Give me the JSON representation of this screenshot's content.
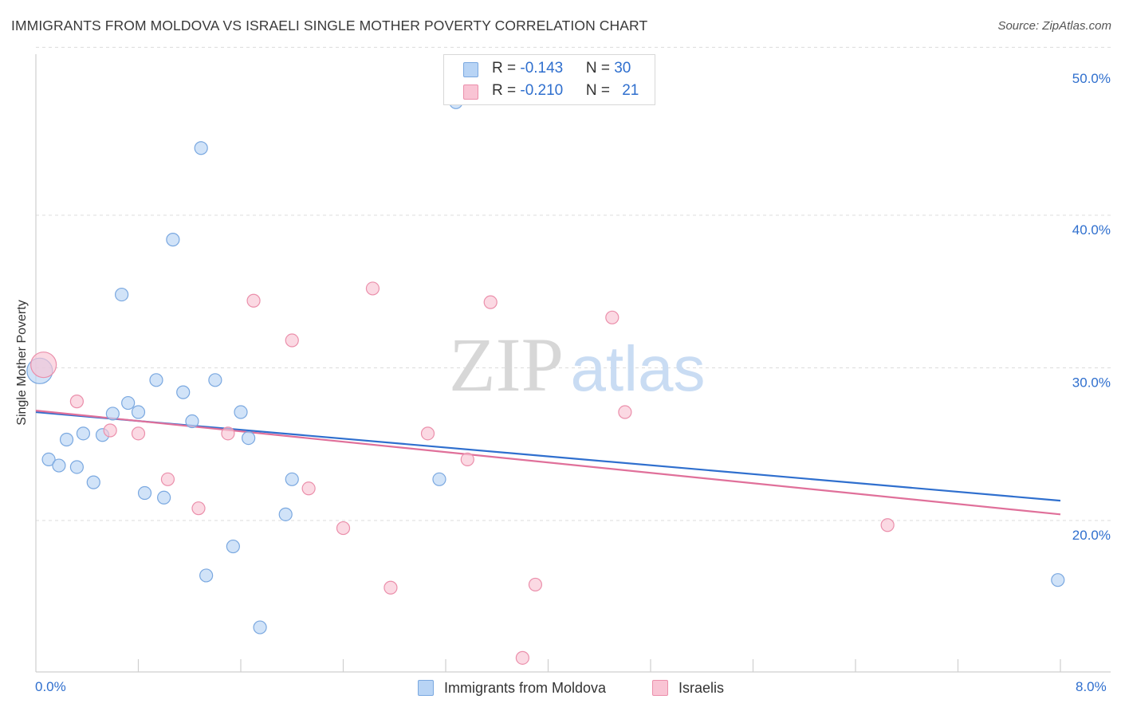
{
  "title": "IMMIGRANTS FROM MOLDOVA VS ISRAELI SINGLE MOTHER POVERTY CORRELATION CHART",
  "source": "Source: ZipAtlas.com",
  "watermark": {
    "zip": "ZIP",
    "atlas": "atlas"
  },
  "colors": {
    "blue_fill": "#b8d4f5",
    "blue_stroke": "#7aa8e0",
    "blue_line": "#2f6fce",
    "pink_fill": "#f9c4d4",
    "pink_stroke": "#eb8fab",
    "pink_line": "#e0709a",
    "axis_text": "#2f6fce",
    "grid": "#dcdcdc"
  },
  "legend": {
    "rows": [
      {
        "r_label": "R = ",
        "r_value": "-0.143",
        "n_label": "N = ",
        "n_value": "30",
        "series": "blue"
      },
      {
        "r_label": "R = ",
        "r_value": "-0.210",
        "n_label": "N = ",
        "n_value": "21",
        "series": "pink"
      }
    ]
  },
  "bottom_legend": [
    {
      "label": "Immigrants from Moldova",
      "series": "blue"
    },
    {
      "label": "Israelis",
      "series": "pink"
    }
  ],
  "chart_data": {
    "type": "scatter",
    "title": "IMMIGRANTS FROM MOLDOVA VS ISRAELI SINGLE MOTHER POVERTY CORRELATION CHART",
    "xlabel": "",
    "ylabel": "Single Mother Poverty",
    "xlim": [
      0,
      8
    ],
    "ylim": [
      10,
      52
    ],
    "x_tick_labels": [
      {
        "value": 0,
        "label": "0.0%"
      },
      {
        "value": 8,
        "label": "8.0%"
      }
    ],
    "y_tick_labels": [
      {
        "value": 20,
        "label": "20.0%"
      },
      {
        "value": 30,
        "label": "30.0%"
      },
      {
        "value": 40,
        "label": "40.0%"
      },
      {
        "value": 50,
        "label": "50.0%"
      }
    ],
    "grid_y": [
      20,
      30,
      40,
      51
    ],
    "series": [
      {
        "name": "Immigrants from Moldova",
        "color": "blue",
        "trend": {
          "x": [
            0,
            8
          ],
          "y": [
            27.1,
            21.3
          ]
        },
        "points": [
          {
            "x": 0.03,
            "y": 29.8,
            "size": "large"
          },
          {
            "x": 0.1,
            "y": 24.0
          },
          {
            "x": 0.18,
            "y": 23.6
          },
          {
            "x": 0.24,
            "y": 25.3
          },
          {
            "x": 0.32,
            "y": 23.5
          },
          {
            "x": 0.37,
            "y": 25.7
          },
          {
            "x": 0.45,
            "y": 22.5
          },
          {
            "x": 0.52,
            "y": 25.6
          },
          {
            "x": 0.6,
            "y": 27.0
          },
          {
            "x": 0.67,
            "y": 34.8
          },
          {
            "x": 0.72,
            "y": 27.7
          },
          {
            "x": 0.8,
            "y": 27.1
          },
          {
            "x": 0.85,
            "y": 21.8
          },
          {
            "x": 0.94,
            "y": 29.2
          },
          {
            "x": 1.0,
            "y": 21.5
          },
          {
            "x": 1.07,
            "y": 38.4
          },
          {
            "x": 1.15,
            "y": 28.4
          },
          {
            "x": 1.22,
            "y": 26.5
          },
          {
            "x": 1.29,
            "y": 44.4
          },
          {
            "x": 1.33,
            "y": 16.4
          },
          {
            "x": 1.4,
            "y": 29.2
          },
          {
            "x": 1.54,
            "y": 18.3
          },
          {
            "x": 1.6,
            "y": 27.1
          },
          {
            "x": 1.66,
            "y": 25.4
          },
          {
            "x": 1.75,
            "y": 13.0
          },
          {
            "x": 1.95,
            "y": 20.4
          },
          {
            "x": 2.0,
            "y": 22.7
          },
          {
            "x": 3.15,
            "y": 22.7
          },
          {
            "x": 3.28,
            "y": 47.4
          },
          {
            "x": 7.98,
            "y": 16.1
          }
        ]
      },
      {
        "name": "Israelis",
        "color": "pink",
        "trend": {
          "x": [
            0,
            8
          ],
          "y": [
            27.2,
            20.4
          ]
        },
        "points": [
          {
            "x": 0.06,
            "y": 30.2,
            "size": "large"
          },
          {
            "x": 0.32,
            "y": 27.8
          },
          {
            "x": 0.58,
            "y": 25.9
          },
          {
            "x": 0.8,
            "y": 25.7
          },
          {
            "x": 1.03,
            "y": 22.7
          },
          {
            "x": 1.27,
            "y": 20.8
          },
          {
            "x": 1.5,
            "y": 25.7
          },
          {
            "x": 1.7,
            "y": 34.4
          },
          {
            "x": 2.0,
            "y": 31.8
          },
          {
            "x": 2.13,
            "y": 22.1
          },
          {
            "x": 2.4,
            "y": 19.5
          },
          {
            "x": 2.63,
            "y": 35.2
          },
          {
            "x": 2.77,
            "y": 15.6
          },
          {
            "x": 3.06,
            "y": 25.7
          },
          {
            "x": 3.37,
            "y": 24.0
          },
          {
            "x": 3.55,
            "y": 34.3
          },
          {
            "x": 3.8,
            "y": 11.0
          },
          {
            "x": 3.9,
            "y": 15.8
          },
          {
            "x": 4.5,
            "y": 33.3
          },
          {
            "x": 4.6,
            "y": 27.1
          },
          {
            "x": 6.65,
            "y": 19.7
          }
        ]
      }
    ]
  }
}
